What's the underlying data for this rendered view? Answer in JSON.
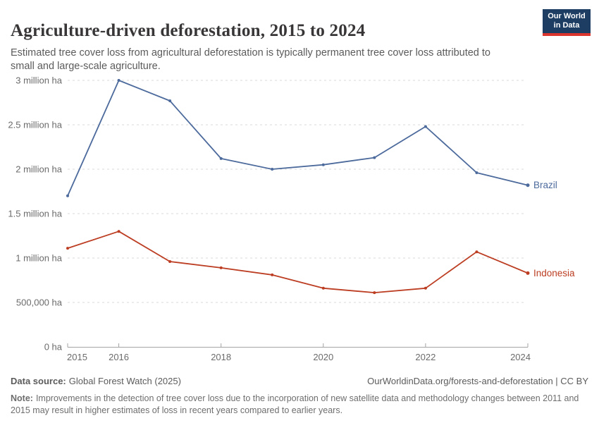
{
  "header": {
    "title": "Agriculture-driven deforestation, 2015 to 2024",
    "subtitle": "Estimated tree cover loss from agricultural deforestation is typically permanent tree cover loss attributed to small and large-scale agriculture.",
    "logo_line1": "Our World",
    "logo_line2": "in Data"
  },
  "chart_data": {
    "type": "line",
    "title": "Agriculture-driven deforestation, 2015 to 2024",
    "unit": "ha",
    "x": [
      2015,
      2016,
      2017,
      2018,
      2019,
      2020,
      2021,
      2022,
      2023,
      2024
    ],
    "series": [
      {
        "name": "Brazil",
        "color": "#4C6A9C",
        "values": [
          1700000,
          3000000,
          2770000,
          2120000,
          2000000,
          2050000,
          2130000,
          2480000,
          1960000,
          1820000
        ]
      },
      {
        "name": "Indonesia",
        "color": "#BC3D22",
        "values": [
          1110000,
          1300000,
          960000,
          890000,
          810000,
          660000,
          610000,
          660000,
          1070000,
          830000
        ]
      }
    ],
    "ylim": [
      0,
      3000000
    ],
    "yticks": [
      0,
      500000,
      1000000,
      1500000,
      2000000,
      2500000,
      3000000
    ],
    "ytick_labels": [
      "0 ha",
      "500,000 ha",
      "1 million ha",
      "1.5 million ha",
      "2 million ha",
      "2.5 million ha",
      "3 million ha"
    ],
    "xticks": [
      2015,
      2016,
      2018,
      2020,
      2022,
      2024
    ],
    "xtick_labels": [
      "2015",
      "2016",
      "2018",
      "2020",
      "2022",
      "2024"
    ],
    "grid": true,
    "legend_position": "end-of-line-labels"
  },
  "footer": {
    "source_label": "Data source:",
    "source_text": "Global Forest Watch (2025)",
    "attribution": "OurWorldinData.org/forests-and-deforestation | CC BY",
    "note_label": "Note:",
    "note_text": "Improvements in the detection of tree cover loss due to the incorporation of new satellite data and methodology changes between 2011 and 2015 may result in higher estimates of loss in recent years compared to earlier years."
  },
  "colors": {
    "brazil": "#4C6A9C",
    "indonesia": "#BC3D22",
    "logo_background": "#1d3d63",
    "logo_underline": "#dc352d",
    "gridline": "#d9d9d9",
    "axis": "#a3a3a3",
    "tick_label": "#6b6b6b",
    "title_text": "#383636",
    "subtitle_text": "#5b5b5b"
  }
}
